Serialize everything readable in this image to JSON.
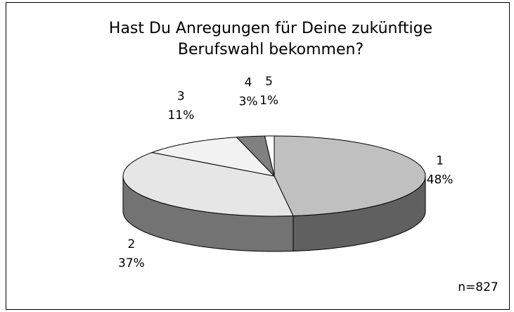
{
  "chart_data": {
    "type": "pie3d",
    "title": "Hast Du Anregungen für Deine zukünftige Berufswahl bekommen?",
    "categories": [
      "1",
      "2",
      "3",
      "4",
      "5"
    ],
    "values": [
      48,
      37,
      11,
      3,
      1
    ],
    "value_labels": [
      "48%",
      "37%",
      "11%",
      "3%",
      "1%"
    ],
    "colors": [
      "#c0c0c0",
      "#e6e6e6",
      "#f2f2f2",
      "#808080",
      "#ffffff"
    ],
    "annotation": "n=827"
  }
}
